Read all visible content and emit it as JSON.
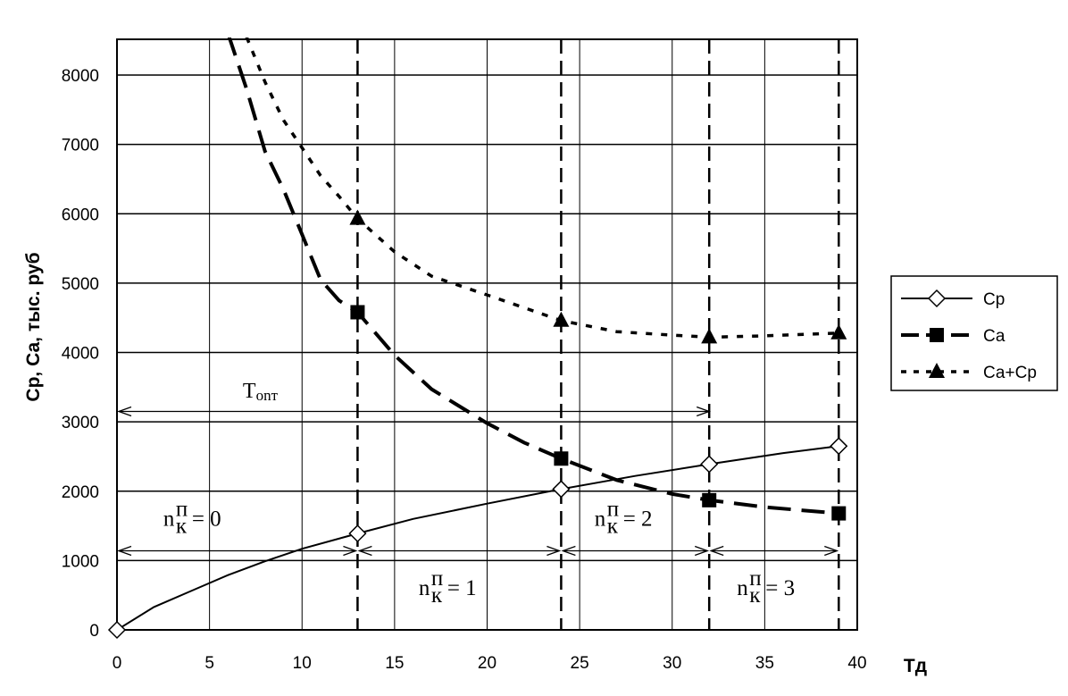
{
  "chart_data": {
    "type": "line",
    "ylabel": "Ср, Са, тыс. руб",
    "xlabel": "Тд",
    "xlim": [
      0,
      40
    ],
    "ylim": [
      0,
      8500
    ],
    "x_ticks": [
      0,
      5,
      10,
      15,
      20,
      25,
      30,
      35,
      40
    ],
    "y_ticks": [
      0,
      1000,
      2000,
      3000,
      4000,
      5000,
      6000,
      7000,
      8000
    ],
    "grid": true,
    "legend_position": "right",
    "series": [
      {
        "name": "Ср",
        "style": "solid",
        "marker": "diamond-open",
        "color": "#000000",
        "x": [
          0,
          13,
          24,
          32,
          39
        ],
        "y": [
          0,
          1390,
          2030,
          2390,
          2650
        ],
        "curve_x": [
          0,
          2,
          4,
          6,
          8,
          10,
          13,
          16,
          20,
          24,
          28,
          32,
          36,
          39
        ],
        "curve_y": [
          0,
          330,
          560,
          790,
          990,
          1170,
          1390,
          1600,
          1820,
          2030,
          2220,
          2390,
          2550,
          2650
        ]
      },
      {
        "name": "Са",
        "style": "long-dash",
        "marker": "square-filled",
        "color": "#000000",
        "x": [
          13,
          24,
          32,
          39
        ],
        "y": [
          4580,
          2470,
          1870,
          1680
        ],
        "curve_x": [
          6,
          7,
          8,
          9,
          10,
          11,
          12,
          13,
          15,
          17,
          20,
          22,
          24,
          27,
          30,
          32,
          35,
          39
        ],
        "curve_y": [
          8600,
          7800,
          6900,
          6350,
          5700,
          5050,
          4750,
          4580,
          3960,
          3470,
          2980,
          2700,
          2470,
          2160,
          1960,
          1870,
          1770,
          1680
        ]
      },
      {
        "name": "Са+Ср",
        "style": "short-dash",
        "marker": "triangle-filled",
        "color": "#000000",
        "x": [
          13,
          24,
          32,
          39
        ],
        "y": [
          5930,
          4460,
          4220,
          4280
        ],
        "curve_x": [
          7,
          8,
          9,
          10,
          11,
          12,
          13,
          15,
          17,
          20,
          24,
          27,
          30,
          32,
          35,
          39
        ],
        "curve_y": [
          8550,
          7900,
          7350,
          6950,
          6550,
          6250,
          5930,
          5450,
          5100,
          4830,
          4460,
          4300,
          4250,
          4220,
          4240,
          4280
        ]
      }
    ],
    "vertical_lines_x": [
      13,
      24,
      32,
      39
    ],
    "annotations": {
      "t_opt": {
        "text": "Тonт",
        "arrow_from": 0,
        "arrow_to": 32,
        "y": 3150
      },
      "intervals_y": 1140,
      "interval_arrows": [
        [
          0,
          13
        ],
        [
          13,
          24
        ],
        [
          24,
          32
        ],
        [
          32,
          39
        ]
      ],
      "labels": [
        {
          "base": "n",
          "sup": "п",
          "sub": "к",
          "value": "= 0",
          "x": 2.5,
          "y": 1500
        },
        {
          "base": "n",
          "sup": "п",
          "sub": "к",
          "value": "= 1",
          "x": 16.3,
          "y": 500
        },
        {
          "base": "n",
          "sup": "п",
          "sub": "к",
          "value": "= 2",
          "x": 25.8,
          "y": 1500
        },
        {
          "base": "n",
          "sup": "п",
          "sub": "к",
          "value": "= 3",
          "x": 33.5,
          "y": 500
        }
      ]
    }
  }
}
